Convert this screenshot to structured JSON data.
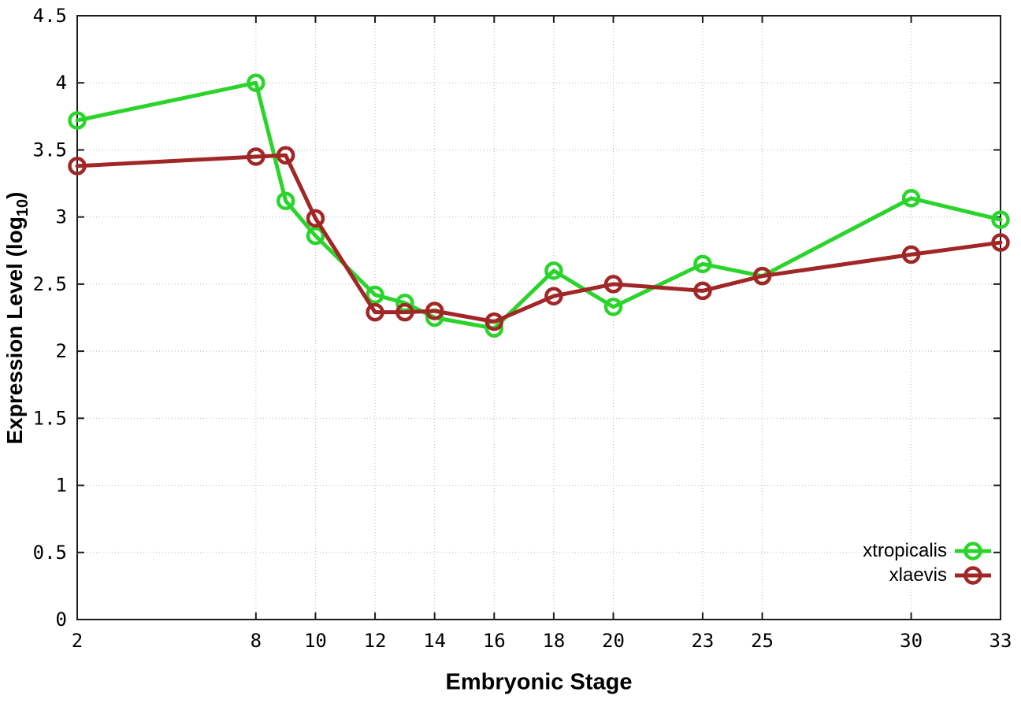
{
  "figure": {
    "background": "#ffffff",
    "border_color": "#1c1c1c",
    "grid_color": "#b8b8b8",
    "tick_label_color": "#000000"
  },
  "chart_data": {
    "type": "line",
    "title": "",
    "xlabel": "Embryonic Stage",
    "ylabel": "Expression Level (log10)",
    "ylabel_parts": {
      "main": "Expression Level (log",
      "sub": "10",
      "close": ")"
    },
    "xlim": [
      2,
      33
    ],
    "ylim": [
      0,
      4.5
    ],
    "xticks": [
      2,
      8,
      10,
      12,
      14,
      16,
      18,
      20,
      23,
      25,
      30,
      33
    ],
    "xtick_labels": [
      "2",
      "8",
      "10",
      "12",
      "14",
      "16",
      "18",
      "20",
      "23",
      "25",
      "30",
      "33"
    ],
    "yticks": [
      0,
      0.5,
      1,
      1.5,
      2,
      2.5,
      3,
      3.5,
      4,
      4.5
    ],
    "ytick_labels": [
      "0",
      "0.5",
      "1",
      "1.5",
      "2",
      "2.5",
      "3",
      "3.5",
      "4",
      "4.5"
    ],
    "grid": true,
    "legend_position": "inside-bottom-right",
    "marker": "open-circle",
    "x": [
      2,
      8,
      9,
      10,
      12,
      13,
      14,
      16,
      18,
      20,
      23,
      25,
      30,
      33
    ],
    "series": [
      {
        "name": "xtropicalis",
        "color": "#2bd42b",
        "values": [
          3.72,
          4.0,
          3.12,
          2.86,
          2.42,
          2.36,
          2.25,
          2.17,
          2.6,
          2.33,
          2.65,
          2.56,
          3.14,
          2.98
        ]
      },
      {
        "name": "xlaevis",
        "color": "#a12626",
        "values": [
          3.38,
          3.45,
          3.46,
          2.99,
          2.29,
          2.29,
          2.3,
          2.22,
          2.41,
          2.5,
          2.45,
          2.56,
          2.72,
          2.81
        ]
      }
    ]
  }
}
